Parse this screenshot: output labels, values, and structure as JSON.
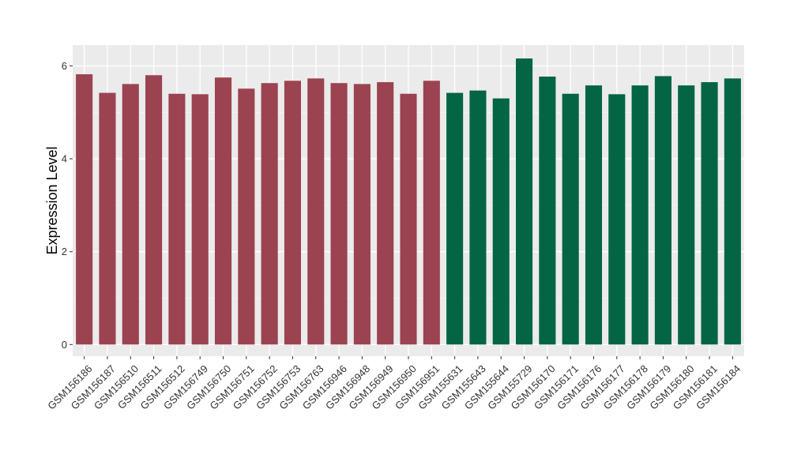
{
  "chart_data": {
    "type": "bar",
    "title": "",
    "xlabel": "",
    "ylabel": "Expression Level",
    "ylim": [
      -0.25,
      6.45
    ],
    "yticks": [
      0,
      2,
      4,
      6
    ],
    "grid": true,
    "legend": "none",
    "colors": {
      "panel": "#ebebeb",
      "grid_major": "#ffffff",
      "grid_minor": "#f5f5f5",
      "group1": "#9b4350",
      "group2": "#046544"
    },
    "categories": [
      "GSM156186",
      "GSM156187",
      "GSM156510",
      "GSM156511",
      "GSM156512",
      "GSM156749",
      "GSM156750",
      "GSM156751",
      "GSM156752",
      "GSM156753",
      "GSM156763",
      "GSM156946",
      "GSM156948",
      "GSM156949",
      "GSM156950",
      "GSM156951",
      "GSM155631",
      "GSM155643",
      "GSM155644",
      "GSM155729",
      "GSM156170",
      "GSM156171",
      "GSM156176",
      "GSM156177",
      "GSM156178",
      "GSM156179",
      "GSM156180",
      "GSM156181",
      "GSM156184"
    ],
    "values": [
      5.82,
      5.42,
      5.61,
      5.8,
      5.4,
      5.39,
      5.75,
      5.51,
      5.63,
      5.68,
      5.73,
      5.63,
      5.61,
      5.65,
      5.4,
      5.68,
      5.42,
      5.47,
      5.3,
      6.16,
      5.77,
      5.4,
      5.58,
      5.39,
      5.58,
      5.78,
      5.58,
      5.65,
      5.73
    ],
    "groups": [
      1,
      1,
      1,
      1,
      1,
      1,
      1,
      1,
      1,
      1,
      1,
      1,
      1,
      1,
      1,
      1,
      2,
      2,
      2,
      2,
      2,
      2,
      2,
      2,
      2,
      2,
      2,
      2,
      2
    ]
  }
}
